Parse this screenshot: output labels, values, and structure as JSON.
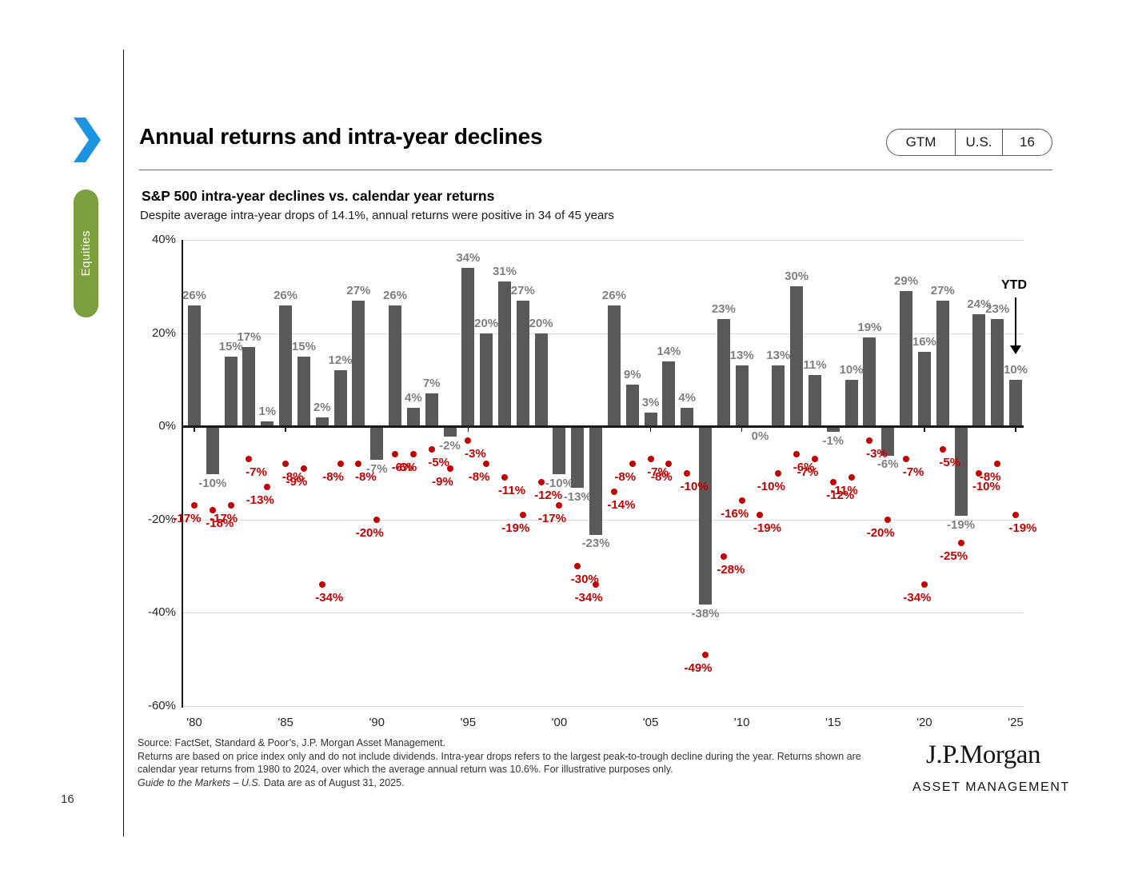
{
  "page": {
    "number": "16"
  },
  "sidebar": {
    "tab_label": "Equities"
  },
  "header": {
    "title": "Annual returns and intra-year declines",
    "badge": {
      "gtm": "GTM",
      "region": "U.S.",
      "page": "16"
    }
  },
  "chart_header": {
    "title": "S&P 500 intra-year declines vs. calendar year returns",
    "subtitle": "Despite average intra-year drops of 14.1%, annual returns were positive in 34 of 45 years"
  },
  "chart_data": {
    "type": "bar",
    "title": "S&P 500 intra-year declines vs. calendar year returns",
    "x": [
      1980,
      1981,
      1982,
      1983,
      1984,
      1985,
      1986,
      1987,
      1988,
      1989,
      1990,
      1991,
      1992,
      1993,
      1994,
      1995,
      1996,
      1997,
      1998,
      1999,
      2000,
      2001,
      2002,
      2003,
      2004,
      2005,
      2006,
      2007,
      2008,
      2009,
      2010,
      2011,
      2012,
      2013,
      2014,
      2015,
      2016,
      2017,
      2018,
      2019,
      2020,
      2021,
      2022,
      2023,
      2024,
      2025
    ],
    "x_tick_labels": [
      "'80",
      "'85",
      "'90",
      "'95",
      "'00",
      "'05",
      "'10",
      "'15",
      "'20",
      "'25"
    ],
    "y_ticks": [
      40,
      20,
      0,
      -20,
      -40,
      -60
    ],
    "ylim": [
      -60,
      40
    ],
    "grid": "horizontal",
    "series": [
      {
        "name": "Calendar year return",
        "type": "bar",
        "color": "#595959",
        "values": [
          26,
          -10,
          15,
          17,
          1,
          26,
          15,
          2,
          12,
          27,
          -7,
          26,
          4,
          7,
          -2,
          34,
          20,
          31,
          27,
          20,
          -10,
          -13,
          -23,
          26,
          9,
          3,
          14,
          4,
          -38,
          23,
          13,
          0,
          13,
          30,
          11,
          -1,
          10,
          19,
          -6,
          29,
          16,
          27,
          -19,
          24,
          23,
          10
        ]
      },
      {
        "name": "Intra-year decline",
        "type": "scatter",
        "color": "#c00000",
        "values": [
          -17,
          -18,
          -17,
          -7,
          -13,
          -8,
          -9,
          -34,
          -8,
          -8,
          -20,
          -6,
          -6,
          -5,
          -9,
          -3,
          -8,
          -11,
          -19,
          -12,
          -17,
          -30,
          -34,
          -14,
          -8,
          -7,
          -8,
          -10,
          -49,
          -28,
          -16,
          -19,
          -10,
          -6,
          -7,
          -12,
          -11,
          -3,
          -20,
          -7,
          -34,
          -5,
          -25,
          -10,
          -8,
          -19
        ]
      }
    ],
    "ytd_annotation": {
      "label": "YTD",
      "year": 2025,
      "value_label": "10%"
    }
  },
  "footer": {
    "line1": "Source: FactSet, Standard & Poor’s, J.P. Morgan Asset Management.",
    "line2": "Returns are based on price index only and do not include dividends. Intra-year drops refers to the largest peak-to-trough decline during the year. Returns shown are",
    "line3": "calendar year returns from 1980 to 2024, over which the average annual return was 10.6%. For illustrative purposes only.",
    "line4_italic": "Guide to the Markets – U.S.",
    "line4_rest": " Data are as of August 31, 2025."
  },
  "logo": {
    "main": "J.P.Morgan",
    "sub": "ASSET MANAGEMENT"
  },
  "colors": {
    "bar": "#595959",
    "decline_dot": "#c00000",
    "bar_label": "#7f7f7f",
    "grid": "#d9d9d9",
    "axis": "#1a1a1a",
    "accent_blue": "#1b95e0",
    "accent_green": "#7ca03d"
  }
}
